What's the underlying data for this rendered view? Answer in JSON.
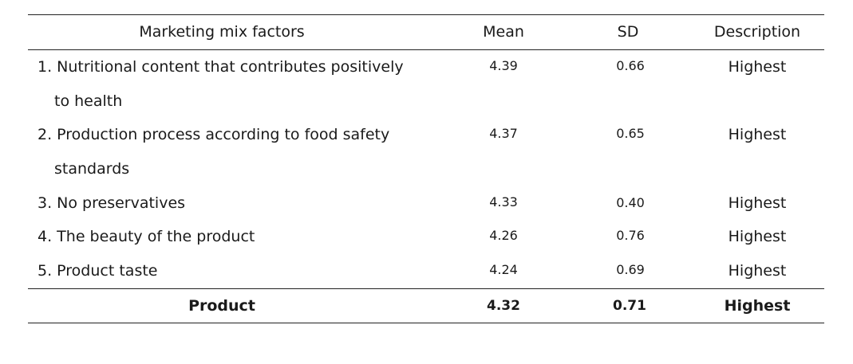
{
  "table": {
    "headers": [
      "Marketing mix factors",
      "Mean",
      "SD",
      "Description"
    ],
    "rows": [
      {
        "label_line1": "1. Nutritional content that contributes positively",
        "label_line2": "to health",
        "mean": "4.39",
        "sd": "0.66",
        "description": "Highest"
      },
      {
        "label_line1": "2. Production process according to food safety",
        "label_line2": "standards",
        "mean": "4.37",
        "sd": "0.65",
        "description": "Highest"
      },
      {
        "label_line1": "3. No preservatives",
        "mean": "4.33",
        "sd": "0.40",
        "description": "Highest"
      },
      {
        "label_line1": "4. The beauty of the product",
        "mean": "4.26",
        "sd": "0.76",
        "description": "Highest"
      },
      {
        "label_line1": "5. Product taste",
        "mean": "4.24",
        "sd": "0.69",
        "description": "Highest"
      }
    ],
    "summary": {
      "label": "Product",
      "mean": "4.32",
      "sd": "0.71",
      "description": "Highest"
    }
  }
}
